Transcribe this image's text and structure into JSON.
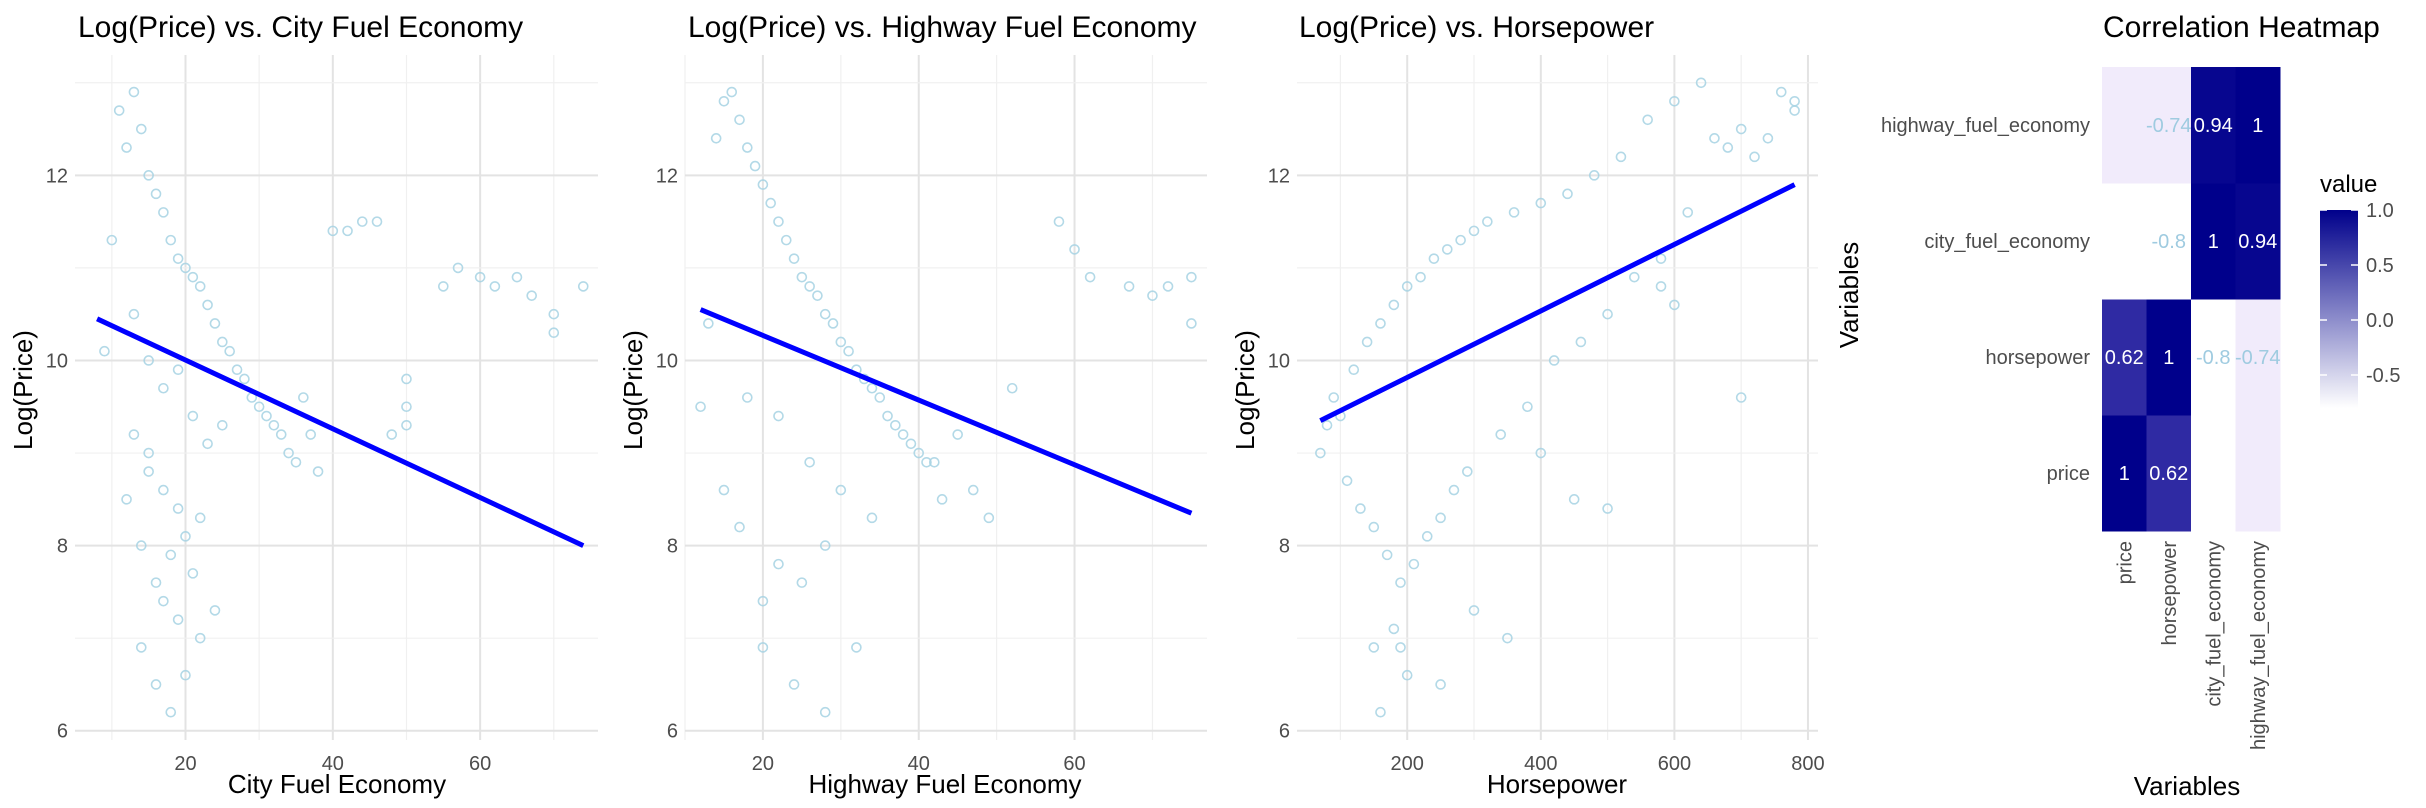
{
  "chart_data": [
    {
      "type": "scatter",
      "title": "Log(Price) vs. City Fuel Economy",
      "xlabel": "City Fuel Economy",
      "ylabel": "Log(Price)",
      "xlim": [
        5,
        76
      ],
      "ylim": [
        5.9,
        13.3
      ],
      "xticks": [
        20,
        40,
        60
      ],
      "yticks": [
        6,
        8,
        10,
        12
      ],
      "grid": true,
      "point_color": "#A6D2E3",
      "line_color": "#0000FF",
      "trend_line": {
        "x": [
          8,
          74
        ],
        "y": [
          10.45,
          8.0
        ]
      },
      "series": [
        {
          "x": [
            9,
            10,
            11,
            12,
            12,
            13,
            13,
            14,
            14,
            15,
            15,
            16,
            16,
            17,
            17,
            18,
            18,
            19,
            19,
            20,
            20,
            21,
            21,
            22,
            22,
            23,
            24,
            25,
            26,
            27,
            28,
            29,
            30,
            31,
            32,
            33,
            34,
            35,
            36,
            37,
            38,
            40,
            42,
            44,
            46,
            48,
            50,
            50,
            50,
            55,
            57,
            60,
            62,
            65,
            67,
            70,
            70,
            74,
            14,
            16,
            18,
            20,
            22,
            24,
            13,
            15,
            17,
            19,
            21,
            23,
            25,
            15,
            17,
            19
          ],
          "y": [
            10.1,
            11.3,
            12.7,
            12.3,
            8.5,
            12.9,
            9.2,
            12.5,
            8.0,
            12.0,
            8.8,
            11.8,
            7.6,
            11.6,
            7.4,
            11.3,
            7.9,
            11.1,
            7.2,
            11.0,
            8.1,
            10.9,
            7.7,
            10.8,
            8.3,
            10.6,
            10.4,
            10.2,
            10.1,
            9.9,
            9.8,
            9.6,
            9.5,
            9.4,
            9.3,
            9.2,
            9.0,
            8.9,
            9.6,
            9.2,
            8.8,
            11.4,
            11.4,
            11.5,
            11.5,
            9.2,
            9.8,
            9.5,
            9.3,
            10.8,
            11.0,
            10.9,
            10.8,
            10.9,
            10.7,
            10.5,
            10.3,
            10.8,
            6.9,
            6.5,
            6.2,
            6.6,
            7.0,
            7.3,
            10.5,
            10.0,
            9.7,
            9.9,
            9.4,
            9.1,
            9.3,
            9.0,
            8.6,
            8.4
          ]
        }
      ]
    },
    {
      "type": "scatter",
      "title": "Log(Price) vs. Highway Fuel Economy",
      "xlabel": "Highway Fuel Economy",
      "ylabel": "Log(Price)",
      "xlim": [
        10,
        77
      ],
      "ylim": [
        5.9,
        13.3
      ],
      "xticks": [
        20,
        40,
        60
      ],
      "yticks": [
        6,
        8,
        10,
        12
      ],
      "grid": true,
      "point_color": "#A6D2E3",
      "line_color": "#0000FF",
      "trend_line": {
        "x": [
          12,
          75
        ],
        "y": [
          10.55,
          8.35
        ]
      },
      "series": [
        {
          "x": [
            12,
            13,
            14,
            15,
            15,
            16,
            17,
            17,
            18,
            19,
            20,
            20,
            21,
            22,
            22,
            23,
            24,
            25,
            25,
            26,
            27,
            28,
            28,
            29,
            30,
            31,
            32,
            33,
            34,
            35,
            36,
            37,
            38,
            39,
            40,
            41,
            42,
            43,
            45,
            47,
            49,
            52,
            58,
            60,
            62,
            67,
            70,
            72,
            75,
            75,
            20,
            24,
            28,
            32,
            18,
            22,
            26,
            30,
            34
          ],
          "y": [
            9.5,
            10.4,
            12.4,
            12.8,
            8.6,
            12.9,
            12.6,
            8.2,
            12.3,
            12.1,
            11.9,
            7.4,
            11.7,
            11.5,
            7.8,
            11.3,
            11.1,
            10.9,
            7.6,
            10.8,
            10.7,
            10.5,
            8.0,
            10.4,
            10.2,
            10.1,
            9.9,
            9.8,
            9.7,
            9.6,
            9.4,
            9.3,
            9.2,
            9.1,
            9.0,
            8.9,
            8.9,
            8.5,
            9.2,
            8.6,
            8.3,
            9.7,
            11.5,
            11.2,
            10.9,
            10.8,
            10.7,
            10.8,
            10.9,
            10.4,
            6.9,
            6.5,
            6.2,
            6.9,
            9.6,
            9.4,
            8.9,
            8.6,
            8.3
          ]
        }
      ]
    },
    {
      "type": "scatter",
      "title": "Log(Price) vs. Horsepower",
      "xlabel": "Horsepower",
      "ylabel": "Log(Price)",
      "xlim": [
        35,
        815
      ],
      "ylim": [
        5.9,
        13.3
      ],
      "xticks": [
        200,
        400,
        600,
        800
      ],
      "yticks": [
        6,
        8,
        10,
        12
      ],
      "grid": true,
      "point_color": "#A6D2E3",
      "line_color": "#0000FF",
      "trend_line": {
        "x": [
          70,
          780
        ],
        "y": [
          9.35,
          11.9
        ]
      },
      "series": [
        {
          "x": [
            70,
            80,
            90,
            100,
            110,
            120,
            130,
            140,
            150,
            160,
            170,
            180,
            190,
            200,
            210,
            220,
            230,
            240,
            250,
            260,
            270,
            280,
            290,
            300,
            320,
            340,
            360,
            380,
            400,
            420,
            440,
            460,
            480,
            500,
            520,
            540,
            560,
            580,
            600,
            620,
            640,
            660,
            680,
            700,
            720,
            740,
            760,
            780,
            780,
            580,
            600,
            150,
            180,
            200,
            160,
            190,
            250,
            300,
            350,
            400,
            450,
            500,
            700
          ],
          "y": [
            9.0,
            9.3,
            9.6,
            9.4,
            8.7,
            9.9,
            8.4,
            10.2,
            8.2,
            10.4,
            7.9,
            10.6,
            7.6,
            10.8,
            7.8,
            10.9,
            8.1,
            11.1,
            8.3,
            11.2,
            8.6,
            11.3,
            8.8,
            11.4,
            11.5,
            9.2,
            11.6,
            9.5,
            11.7,
            10.0,
            11.8,
            10.2,
            12.0,
            10.5,
            12.2,
            10.9,
            12.6,
            11.1,
            12.8,
            11.6,
            13.0,
            12.4,
            12.3,
            12.5,
            12.2,
            12.4,
            12.9,
            12.7,
            12.8,
            10.8,
            10.6,
            6.9,
            7.1,
            6.6,
            6.2,
            6.9,
            6.5,
            7.3,
            7.0,
            9.0,
            8.5,
            8.4,
            9.6
          ]
        }
      ]
    },
    {
      "type": "heatmap",
      "title": "Correlation Heatmap",
      "xlabel": "Variables",
      "ylabel": "Variables",
      "x_categories": [
        "price",
        "horsepower",
        "city_fuel_economy",
        "highway_fuel_economy"
      ],
      "y_categories": [
        "price",
        "horsepower",
        "city_fuel_economy",
        "highway_fuel_economy"
      ],
      "values": [
        [
          1,
          0.62,
          -0.8,
          -0.74
        ],
        [
          0.62,
          1,
          -0.8,
          -0.74
        ],
        [
          -0.8,
          -0.8,
          1,
          0.94
        ],
        [
          -0.74,
          -0.74,
          0.94,
          1
        ]
      ],
      "cell_labels": [
        [
          "1",
          "0.62",
          "",
          ""
        ],
        [
          "0.62",
          "1",
          "-0.8",
          "-0.74"
        ],
        [
          "",
          "-0.8",
          "1",
          "0.94"
        ],
        [
          "",
          "-0.74",
          "0.94",
          "1"
        ]
      ],
      "legend_title": "value",
      "legend_ticks": [
        "1.0",
        "0.5",
        "0.0",
        "-0.5"
      ],
      "legend_tick_values": [
        1.0,
        0.5,
        0.0,
        -0.5
      ],
      "legend_range": [
        -0.8,
        1.0
      ],
      "color_low": "#FFFFFF",
      "color_high": "#00008B",
      "legend_position": "right"
    }
  ]
}
